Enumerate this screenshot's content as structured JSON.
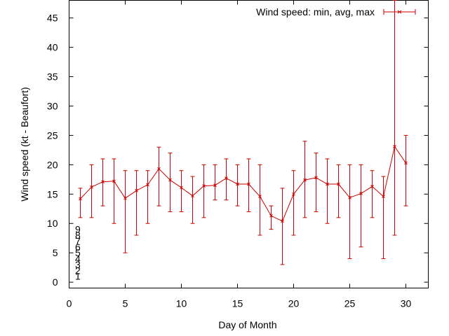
{
  "chart_data": {
    "type": "line",
    "title": "",
    "xlabel": "Day of Month",
    "ylabel": "Wind speed (kt - Beaufort)",
    "xlim": [
      0,
      32
    ],
    "ylim": [
      -1,
      48
    ],
    "x_ticks": [
      0,
      5,
      10,
      15,
      20,
      25,
      30
    ],
    "y_ticks": [
      0,
      5,
      10,
      15,
      20,
      25,
      30,
      35,
      40,
      45
    ],
    "grid": false,
    "legend_position": "top-right",
    "series_color": "#cc0000",
    "beaufort_labels": [
      {
        "value": 1,
        "label": "1"
      },
      {
        "value": 2,
        "label": "2"
      },
      {
        "value": 3,
        "label": "3"
      },
      {
        "value": 4,
        "label": "4"
      },
      {
        "value": 5,
        "label": "5"
      },
      {
        "value": 6,
        "label": "6"
      },
      {
        "value": 7,
        "label": "7"
      },
      {
        "value": 8,
        "label": "8"
      },
      {
        "value": 9,
        "label": "9"
      }
    ],
    "series": [
      {
        "name": "Wind speed: min, avg, max",
        "x": [
          1,
          2,
          3,
          4,
          5,
          6,
          7,
          8,
          9,
          10,
          11,
          12,
          13,
          14,
          15,
          16,
          17,
          18,
          19,
          20,
          21,
          22,
          23,
          24,
          25,
          26,
          27,
          28,
          29,
          30
        ],
        "avg": [
          14.2,
          16.2,
          17.1,
          17.2,
          14.3,
          15.6,
          16.6,
          19.3,
          17.4,
          16.1,
          14.7,
          16.4,
          16.5,
          17.7,
          16.7,
          16.7,
          14.6,
          11.3,
          10.4,
          15.0,
          17.4,
          17.8,
          16.7,
          16.7,
          14.4,
          15.1,
          16.3,
          14.6,
          23.1,
          20.3
        ],
        "min": [
          11,
          11,
          13,
          10,
          5,
          8,
          10,
          13,
          12,
          12,
          10,
          11,
          14,
          14,
          13,
          12,
          8,
          9,
          3,
          8,
          11,
          12,
          10,
          11,
          4,
          6,
          11,
          4,
          8,
          13
        ],
        "max": [
          16,
          20,
          21,
          21,
          19,
          19,
          19,
          23,
          22,
          19,
          18,
          20,
          20,
          21,
          20,
          21,
          20,
          13,
          16,
          19,
          24,
          22,
          21,
          20,
          20,
          20,
          19,
          18,
          48,
          25
        ]
      }
    ]
  }
}
